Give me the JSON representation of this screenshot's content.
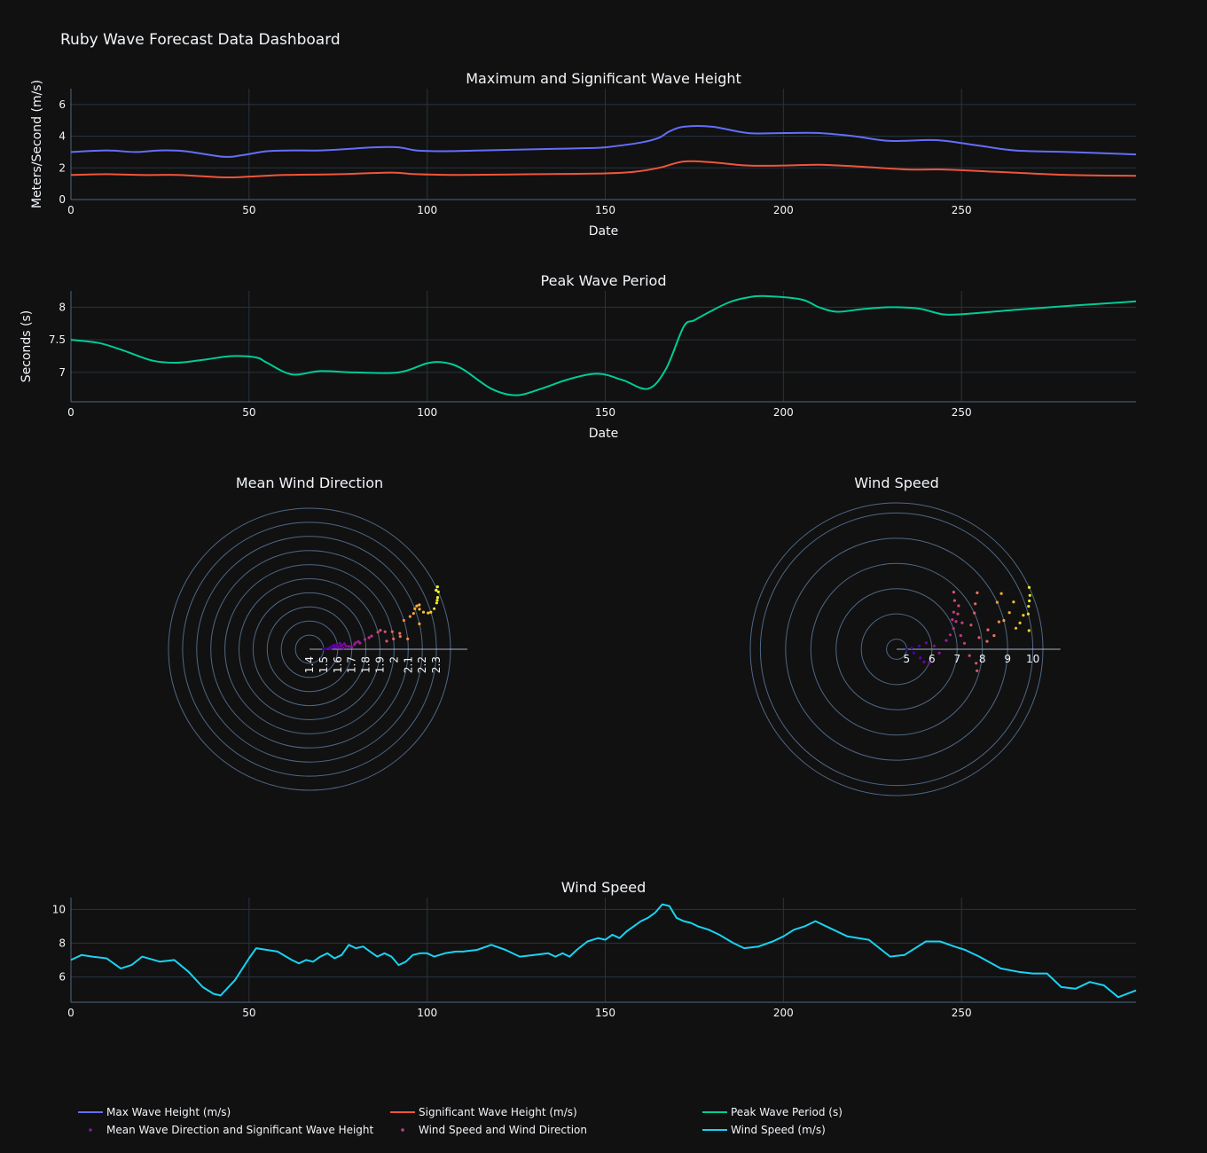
{
  "dashboard_title": "Ruby Wave Forecast Data Dashboard",
  "legend": [
    {
      "label": "Max Wave Height (m/s)",
      "color": "#636efa",
      "kind": "line"
    },
    {
      "label": "Significant Wave Height (m/s)",
      "color": "#ef553b",
      "kind": "line"
    },
    {
      "label": "Peak Wave Period (s)",
      "color": "#00cc96",
      "kind": "line"
    },
    {
      "label": "Mean Wave Direction and Significant Wave Height",
      "color": "#7a1fa2",
      "kind": "dot"
    },
    {
      "label": "Wind Speed and Wind Direction",
      "color": "#c43e8c",
      "kind": "dot"
    },
    {
      "label": "Wind Speed (m/s)",
      "color": "#19d3f3",
      "kind": "line"
    }
  ],
  "chart_data": [
    {
      "type": "line",
      "title": "Maximum and Significant Wave Height",
      "xlabel": "Date",
      "ylabel": "Meters/Second (m/s)",
      "xlim": [
        0,
        299
      ],
      "ylim": [
        0,
        7
      ],
      "xticks": [
        0,
        50,
        100,
        150,
        200,
        250
      ],
      "yticks": [
        0,
        2,
        4,
        6
      ],
      "grid": true,
      "series": [
        {
          "name": "Max Wave Height (m/s)",
          "color": "#636efa",
          "x": [
            0,
            10,
            18,
            25,
            32,
            43,
            48,
            55,
            62,
            70,
            78,
            85,
            92,
            97,
            105,
            115,
            125,
            135,
            145,
            150,
            160,
            165,
            168,
            172,
            180,
            190,
            200,
            210,
            220,
            230,
            243,
            255,
            265,
            280,
            299
          ],
          "y": [
            3.0,
            3.1,
            3.0,
            3.1,
            3.05,
            2.7,
            2.8,
            3.05,
            3.1,
            3.1,
            3.2,
            3.3,
            3.3,
            3.1,
            3.05,
            3.1,
            3.15,
            3.2,
            3.25,
            3.3,
            3.6,
            3.9,
            4.3,
            4.6,
            4.6,
            4.2,
            4.2,
            4.2,
            4.0,
            3.7,
            3.75,
            3.4,
            3.1,
            3.0,
            2.85
          ]
        },
        {
          "name": "Significant Wave Height (m/s)",
          "color": "#ef553b",
          "x": [
            0,
            10,
            20,
            30,
            43,
            50,
            60,
            75,
            90,
            97,
            110,
            130,
            150,
            158,
            165,
            172,
            180,
            190,
            200,
            210,
            220,
            235,
            245,
            260,
            280,
            299
          ],
          "y": [
            1.55,
            1.6,
            1.55,
            1.55,
            1.4,
            1.45,
            1.55,
            1.6,
            1.7,
            1.6,
            1.55,
            1.6,
            1.65,
            1.75,
            2.0,
            2.4,
            2.35,
            2.15,
            2.15,
            2.2,
            2.1,
            1.9,
            1.9,
            1.75,
            1.55,
            1.5
          ]
        }
      ]
    },
    {
      "type": "line",
      "title": "Peak Wave Period",
      "xlabel": "Date",
      "ylabel": "Seconds (s)",
      "xlim": [
        0,
        299
      ],
      "ylim": [
        6.55,
        8.25
      ],
      "xticks": [
        0,
        50,
        100,
        150,
        200,
        250
      ],
      "yticks": [
        7,
        7.5,
        8
      ],
      "ytick_labels": [
        "7",
        "7.5",
        "8"
      ],
      "grid": true,
      "series": [
        {
          "name": "Peak Wave Period (s)",
          "color": "#00cc96",
          "x": [
            0,
            8,
            15,
            23,
            30,
            38,
            45,
            52,
            55,
            62,
            70,
            80,
            92,
            100,
            105,
            110,
            118,
            125,
            132,
            140,
            148,
            155,
            162,
            167,
            172,
            175,
            180,
            185,
            190,
            195,
            205,
            210,
            215,
            222,
            230,
            238,
            245,
            252,
            265,
            280,
            299
          ],
          "y": [
            7.5,
            7.45,
            7.33,
            7.18,
            7.15,
            7.2,
            7.25,
            7.23,
            7.15,
            6.97,
            7.02,
            7.0,
            7.0,
            7.14,
            7.15,
            7.05,
            6.75,
            6.65,
            6.75,
            6.9,
            6.98,
            6.88,
            6.75,
            7.05,
            7.7,
            7.8,
            7.95,
            8.08,
            8.15,
            8.17,
            8.12,
            8.0,
            7.93,
            7.97,
            8.0,
            7.98,
            7.89,
            7.9,
            7.96,
            8.02,
            8.09
          ]
        }
      ]
    },
    {
      "type": "scatter",
      "subtype": "polar",
      "title": "Mean Wind Direction",
      "series_name": "Mean Wave Direction and Significant Wave Height",
      "radial_range": [
        1.4,
        2.4
      ],
      "radial_ticks": [
        "1.4",
        "1.5",
        "1.6",
        "1.7",
        "1.8",
        "1.9",
        "2",
        "2.1",
        "2.2",
        "2.3"
      ],
      "points": [
        [
          1.5,
          0.5
        ],
        [
          1.52,
          1.5
        ],
        [
          1.54,
          3
        ],
        [
          1.55,
          5
        ],
        [
          1.56,
          6.5
        ],
        [
          1.57,
          8
        ],
        [
          1.58,
          9.5
        ],
        [
          1.6,
          8
        ],
        [
          1.62,
          11
        ],
        [
          1.63,
          7
        ],
        [
          1.65,
          9
        ],
        [
          1.66,
          5
        ],
        [
          1.68,
          4
        ],
        [
          1.55,
          2
        ],
        [
          1.6,
          3
        ],
        [
          1.64,
          2
        ],
        [
          1.58,
          4
        ],
        [
          1.62,
          5
        ],
        [
          1.7,
          3
        ],
        [
          1.72,
          6
        ],
        [
          1.73,
          8
        ],
        [
          1.75,
          9
        ],
        [
          1.76,
          7
        ],
        [
          1.8,
          10
        ],
        [
          1.83,
          11
        ],
        [
          1.85,
          12
        ],
        [
          1.9,
          14
        ],
        [
          1.92,
          15
        ],
        [
          1.95,
          13
        ],
        [
          2.0,
          12
        ],
        [
          2.05,
          10
        ],
        [
          1.95,
          6
        ],
        [
          2.0,
          7
        ],
        [
          2.05,
          8
        ],
        [
          2.1,
          6
        ],
        [
          2.1,
          17
        ],
        [
          2.15,
          18
        ],
        [
          2.18,
          19
        ],
        [
          2.2,
          21
        ],
        [
          2.22,
          22
        ],
        [
          2.24,
          22
        ],
        [
          2.23,
          20
        ],
        [
          2.25,
          18
        ],
        [
          2.28,
          17
        ],
        [
          2.3,
          17
        ],
        [
          2.33,
          18
        ],
        [
          2.2,
          13
        ],
        [
          2.36,
          20
        ],
        [
          2.38,
          22
        ],
        [
          2.4,
          24
        ],
        [
          2.41,
          26
        ],
        [
          2.39,
          25
        ],
        [
          2.37,
          21
        ]
      ]
    },
    {
      "type": "scatter",
      "subtype": "polar",
      "title": "Wind Speed",
      "series_name": "Wind Speed and Wind Direction",
      "radial_range": [
        4.6,
        10.4
      ],
      "radial_ticks": [
        "5",
        "6",
        "7",
        "8",
        "9",
        "10"
      ],
      "points": [
        [
          5.0,
          -5
        ],
        [
          5.3,
          -12
        ],
        [
          5.6,
          -20
        ],
        [
          5.8,
          -25
        ],
        [
          6.0,
          -22
        ],
        [
          5.2,
          5
        ],
        [
          5.5,
          8
        ],
        [
          5.8,
          12
        ],
        [
          6.1,
          5
        ],
        [
          6.3,
          -5
        ],
        [
          6.6,
          10
        ],
        [
          6.8,
          15
        ],
        [
          7.0,
          20
        ],
        [
          7.2,
          25
        ],
        [
          7.4,
          30
        ],
        [
          7.6,
          35
        ],
        [
          7.3,
          5
        ],
        [
          7.5,
          -5
        ],
        [
          7.8,
          -10
        ],
        [
          7.9,
          -15
        ],
        [
          7.1,
          28
        ],
        [
          7.3,
          33
        ],
        [
          7.6,
          40
        ],
        [
          7.8,
          45
        ],
        [
          7.4,
          22
        ],
        [
          7.2,
          12
        ],
        [
          7.7,
          18
        ],
        [
          8.0,
          25
        ],
        [
          8.2,
          30
        ],
        [
          8.5,
          35
        ],
        [
          7.9,
          8
        ],
        [
          8.3,
          12
        ],
        [
          8.2,
          5
        ],
        [
          8.5,
          8
        ],
        [
          8.8,
          15
        ],
        [
          9.0,
          25
        ],
        [
          9.3,
          28
        ],
        [
          9.0,
          15
        ],
        [
          9.3,
          18
        ],
        [
          9.6,
          22
        ],
        [
          9.8,
          15
        ],
        [
          9.9,
          8
        ],
        [
          9.4,
          10
        ],
        [
          9.6,
          12
        ],
        [
          10.0,
          15
        ],
        [
          10.2,
          20
        ],
        [
          10.4,
          25
        ],
        [
          10.3,
          22
        ],
        [
          10.1,
          18
        ]
      ]
    },
    {
      "type": "line",
      "title": "Wind Speed",
      "xlabel": "",
      "ylabel": "",
      "xlim": [
        0,
        299
      ],
      "ylim": [
        4.5,
        10.7
      ],
      "xticks": [
        0,
        50,
        100,
        150,
        200,
        250
      ],
      "yticks": [
        6,
        8,
        10
      ],
      "grid": true,
      "series": [
        {
          "name": "Wind Speed (m/s)",
          "color": "#19d3f3",
          "x": [
            0,
            3,
            6,
            10,
            14,
            17,
            20,
            25,
            29,
            33,
            37,
            40,
            42,
            46,
            50,
            52,
            55,
            58,
            62,
            64,
            66,
            68,
            70,
            72,
            74,
            76,
            78,
            80,
            82,
            84,
            86,
            88,
            90,
            92,
            94,
            96,
            98,
            100,
            102,
            105,
            108,
            110,
            114,
            118,
            122,
            126,
            130,
            134,
            136,
            138,
            140,
            142,
            145,
            148,
            150,
            152,
            154,
            156,
            158,
            160,
            162,
            164,
            166,
            168,
            170,
            172,
            174,
            176,
            179,
            182,
            186,
            189,
            193,
            197,
            200,
            203,
            206,
            209,
            213,
            218,
            224,
            230,
            234,
            240,
            244,
            248,
            251,
            255,
            261,
            266,
            270,
            274,
            278,
            282,
            286,
            290,
            294,
            299
          ],
          "y": [
            7.0,
            7.3,
            7.2,
            7.1,
            6.5,
            6.7,
            7.2,
            6.9,
            7.0,
            6.3,
            5.4,
            5.0,
            4.9,
            5.8,
            7.1,
            7.7,
            7.6,
            7.5,
            7.0,
            6.8,
            7.0,
            6.9,
            7.2,
            7.4,
            7.1,
            7.3,
            7.9,
            7.7,
            7.8,
            7.5,
            7.2,
            7.4,
            7.2,
            6.7,
            6.9,
            7.3,
            7.4,
            7.4,
            7.2,
            7.4,
            7.5,
            7.5,
            7.6,
            7.9,
            7.6,
            7.2,
            7.3,
            7.4,
            7.2,
            7.4,
            7.2,
            7.6,
            8.1,
            8.3,
            8.2,
            8.5,
            8.3,
            8.7,
            9.0,
            9.3,
            9.5,
            9.8,
            10.3,
            10.2,
            9.5,
            9.3,
            9.2,
            9.0,
            8.8,
            8.5,
            8.0,
            7.7,
            7.8,
            8.1,
            8.4,
            8.8,
            9.0,
            9.3,
            8.9,
            8.4,
            8.2,
            7.2,
            7.3,
            8.1,
            8.1,
            7.8,
            7.6,
            7.2,
            6.5,
            6.3,
            6.2,
            6.2,
            5.4,
            5.3,
            5.7,
            5.5,
            4.8,
            5.2
          ]
        }
      ]
    }
  ]
}
